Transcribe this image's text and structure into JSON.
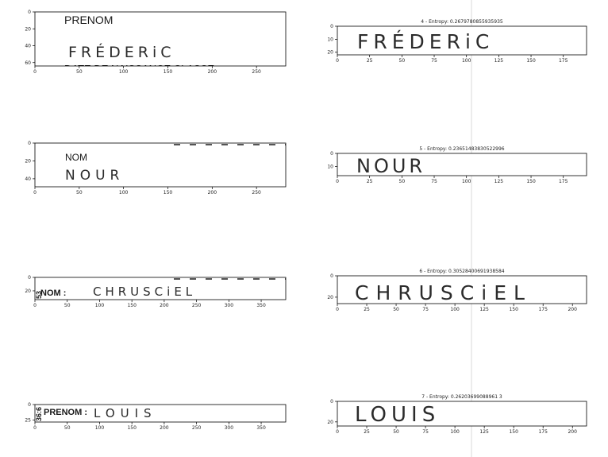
{
  "chart_data": [
    {
      "type": "image",
      "title": "",
      "xticks": [
        0,
        50,
        100,
        150,
        200,
        250
      ],
      "yticks": [
        0,
        20,
        40,
        60
      ],
      "xlim": [
        0,
        283
      ],
      "ylim": [
        64,
        0
      ],
      "printed_text": [
        "PRENOM",
        "DATE DE NAISSANCE    CLASSE"
      ],
      "handwriting": "FRÉDERiC"
    },
    {
      "type": "image",
      "title": "4 - Entropy: 0.2679780855935935",
      "xticks": [
        0,
        25,
        50,
        75,
        100,
        125,
        150,
        175
      ],
      "yticks": [
        0,
        10,
        20
      ],
      "xlim": [
        0,
        193
      ],
      "ylim": [
        22,
        0
      ],
      "handwriting": "FRÉDERiC"
    },
    {
      "type": "image",
      "title": "",
      "xticks": [
        0,
        50,
        100,
        150,
        200,
        250
      ],
      "yticks": [
        0,
        20,
        40
      ],
      "xlim": [
        0,
        283
      ],
      "ylim": [
        49,
        0
      ],
      "printed_text": [
        "NOM"
      ],
      "handwriting": "NOUR"
    },
    {
      "type": "image",
      "title": "5 - Entropy: 0.23651483830522996",
      "xticks": [
        0,
        25,
        50,
        75,
        100,
        125,
        150,
        175
      ],
      "yticks": [
        0,
        10
      ],
      "xlim": [
        0,
        193
      ],
      "ylim": [
        17,
        0
      ],
      "handwriting": "NOUR"
    },
    {
      "type": "image",
      "title": "",
      "xticks": [
        0,
        50,
        100,
        150,
        200,
        250,
        300,
        350
      ],
      "yticks": [
        0,
        20
      ],
      "xlim": [
        0,
        388
      ],
      "ylim": [
        33,
        0
      ],
      "printed_text": [
        "NOM :",
        "53"
      ],
      "handwriting": "CHRUSCiEL"
    },
    {
      "type": "image",
      "title": "6 - Entropy: 0.30528400691938584",
      "xticks": [
        0,
        25,
        50,
        75,
        100,
        125,
        150,
        175,
        200
      ],
      "yticks": [
        0,
        20
      ],
      "xlim": [
        0,
        212
      ],
      "ylim": [
        26,
        0
      ],
      "handwriting": "CHRUSCiEL"
    },
    {
      "type": "image",
      "title": "",
      "xticks": [
        0,
        50,
        100,
        150,
        200,
        250,
        300,
        350
      ],
      "yticks": [
        0,
        25
      ],
      "xlim": [
        0,
        388
      ],
      "ylim": [
        28,
        0
      ],
      "printed_text": [
        "PRENOM :",
        "36:6"
      ],
      "handwriting": "LOUIS"
    },
    {
      "type": "image",
      "title": "7 - Entropy: 0.26203699088961 3",
      "xticks": [
        0,
        25,
        50,
        75,
        100,
        125,
        150,
        175,
        200
      ],
      "yticks": [
        0,
        20
      ],
      "xlim": [
        0,
        212
      ],
      "ylim": [
        24,
        0
      ],
      "handwriting": "LOUIS"
    }
  ],
  "colors": {
    "axes": "#000000",
    "text": "#222222",
    "ink": "#2b2b2b",
    "divider": "#d9d9d9"
  }
}
